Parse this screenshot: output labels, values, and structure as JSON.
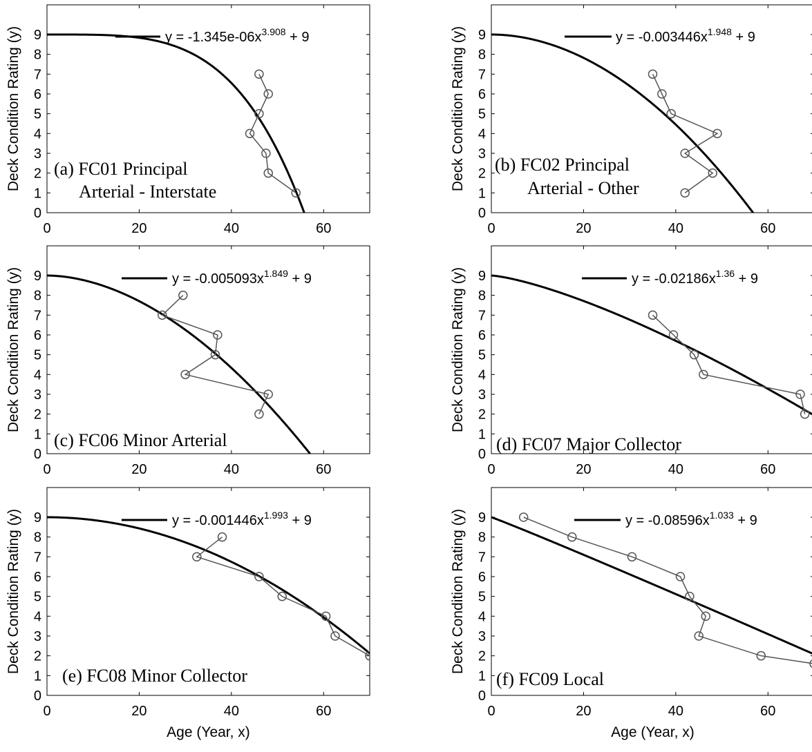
{
  "figure": {
    "ylabel": "Deck Condition Rating (y)",
    "xlabel": "Age (Year, x)",
    "x_ticks": [
      0,
      20,
      40,
      60
    ],
    "y_ticks": [
      0,
      1,
      2,
      3,
      4,
      5,
      6,
      7,
      8,
      9
    ]
  },
  "chart_data": [
    {
      "type": "line",
      "panel": "(a)",
      "title_lines": [
        "(a) FC01 Principal",
        "Arterial - Interstate"
      ],
      "xlim": [
        0,
        70
      ],
      "ylim": [
        0,
        10.5
      ],
      "ylabel": "Deck Condition Rating (y)",
      "xlabel": "",
      "legend": {
        "placement": "top",
        "coef": "-1.345e-06",
        "exp": "3.908",
        "const": "9"
      },
      "fit": {
        "a": -1.345e-06,
        "b": 3.908,
        "c": 9
      },
      "series": [
        {
          "x": [
            46,
            48,
            46,
            44,
            47.5,
            48,
            54
          ],
          "y": [
            7,
            6,
            5,
            4,
            3,
            2,
            1
          ]
        }
      ]
    },
    {
      "type": "line",
      "panel": "(b)",
      "title_lines": [
        "(b) FC02 Principal",
        "Arterial - Other"
      ],
      "xlim": [
        0,
        70
      ],
      "ylim": [
        0,
        10.5
      ],
      "ylabel": "Deck Condition Rating (y)",
      "xlabel": "",
      "legend": {
        "placement": "top",
        "coef": "-0.003446",
        "exp": "1.948",
        "const": "9"
      },
      "fit": {
        "a": -0.003446,
        "b": 1.948,
        "c": 9
      },
      "series": [
        {
          "x": [
            35,
            37,
            39,
            49,
            42,
            48,
            42
          ],
          "y": [
            7,
            6,
            5,
            4,
            3,
            2,
            1
          ]
        }
      ]
    },
    {
      "type": "line",
      "panel": "(c)",
      "title_lines": [
        "(c) FC06 Minor Arterial"
      ],
      "xlim": [
        0,
        70
      ],
      "ylim": [
        0,
        10.5
      ],
      "ylabel": "Deck Condition Rating (y)",
      "xlabel": "",
      "legend": {
        "placement": "top",
        "coef": "-0.005093",
        "exp": "1.849",
        "const": "9"
      },
      "fit": {
        "a": -0.005093,
        "b": 1.849,
        "c": 9
      },
      "series": [
        {
          "x": [
            29.5,
            25,
            37,
            36.5,
            30,
            48,
            46
          ],
          "y": [
            8,
            7,
            6,
            5,
            4,
            3,
            2
          ]
        }
      ]
    },
    {
      "type": "line",
      "panel": "(d)",
      "title_lines": [
        "(d) FC07 Major Collector"
      ],
      "xlim": [
        0,
        70
      ],
      "ylim": [
        0,
        10.5
      ],
      "ylabel": "Deck Condition Rating (y)",
      "xlabel": "",
      "legend": {
        "placement": "top",
        "coef": "-0.02186",
        "exp": "1.36",
        "const": "9"
      },
      "fit": {
        "a": -0.02186,
        "b": 1.36,
        "c": 9
      },
      "series": [
        {
          "x": [
            35,
            39.5,
            44,
            46,
            67,
            68
          ],
          "y": [
            7,
            6,
            5,
            4,
            3,
            2
          ]
        }
      ]
    },
    {
      "type": "line",
      "panel": "(e)",
      "title_lines": [
        "(e) FC08 Minor Collector"
      ],
      "xlim": [
        0,
        70
      ],
      "ylim": [
        0,
        10.5
      ],
      "ylabel": "Deck Condition Rating (y)",
      "xlabel": "Age (Year, x)",
      "legend": {
        "placement": "top",
        "coef": "-0.001446",
        "exp": "1.993",
        "const": "9"
      },
      "fit": {
        "a": -0.001446,
        "b": 1.993,
        "c": 9
      },
      "series": [
        {
          "x": [
            38,
            32.5,
            46,
            51,
            60.5,
            62.5,
            70
          ],
          "y": [
            8,
            7,
            6,
            5,
            4,
            3,
            2
          ]
        }
      ]
    },
    {
      "type": "line",
      "panel": "(f)",
      "title_lines": [
        "(f) FC09 Local"
      ],
      "xlim": [
        0,
        70
      ],
      "ylim": [
        0,
        10.5
      ],
      "ylabel": "Deck Condition Rating (y)",
      "xlabel": "Age (Year, x)",
      "legend": {
        "placement": "top",
        "coef": "-0.08596",
        "exp": "1.033",
        "const": "9"
      },
      "fit": {
        "a": -0.08596,
        "b": 1.033,
        "c": 9
      },
      "series": [
        {
          "x": [
            7,
            17.5,
            30.5,
            41,
            43,
            46.5,
            45,
            58.5,
            70
          ],
          "y": [
            9,
            8,
            7,
            6,
            5,
            4,
            3,
            2,
            1.6
          ]
        }
      ]
    }
  ]
}
